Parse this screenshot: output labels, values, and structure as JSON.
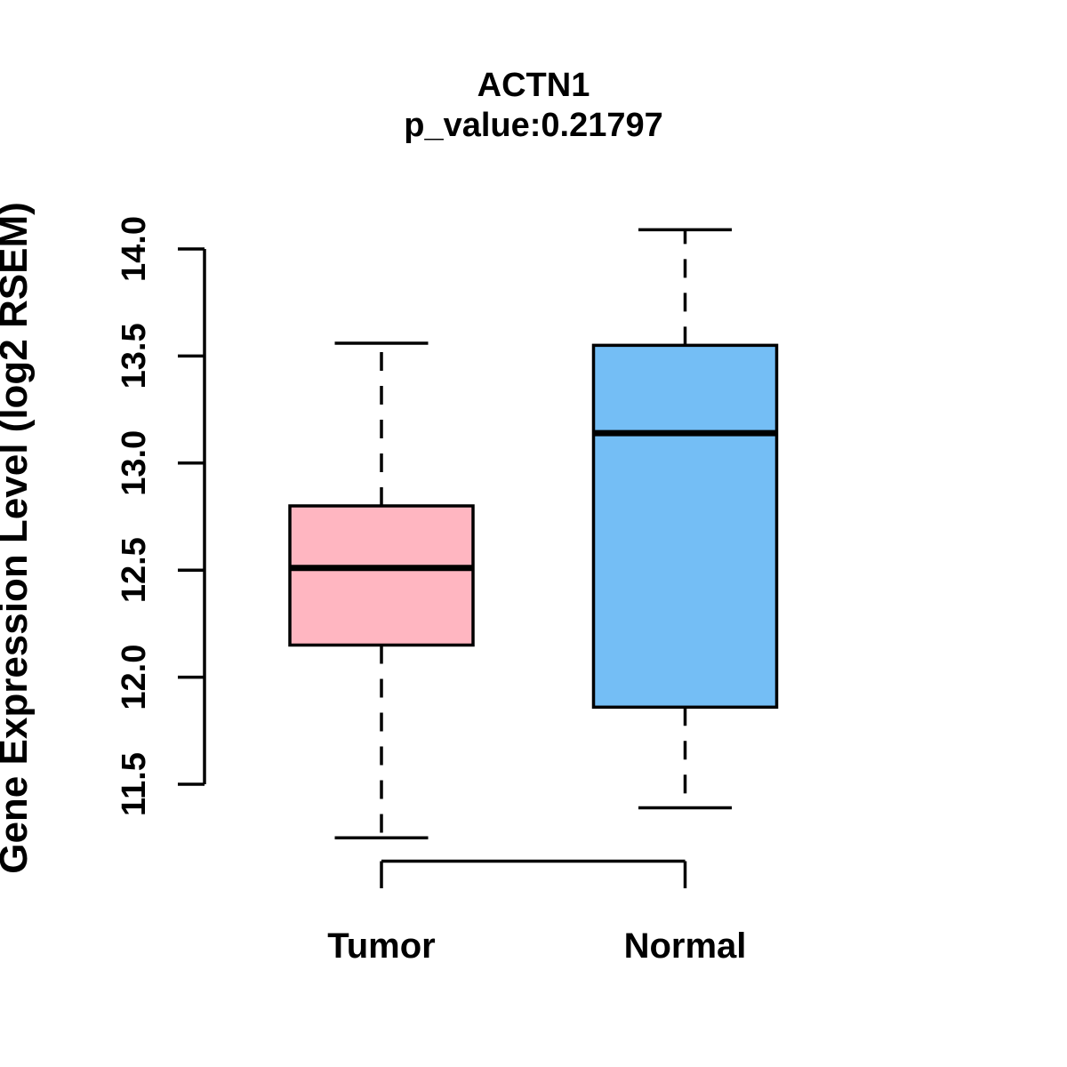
{
  "page": {
    "background": "#FFFFFF"
  },
  "chart_data": {
    "type": "boxplot",
    "title": "ACTN1",
    "subtitle": "p_value:0.21797",
    "ylabel": "Gene Expression Level (log2 RSEM)",
    "xlabel": "",
    "yticks": [
      "11.5",
      "12.0",
      "12.5",
      "13.0",
      "13.5",
      "14.0"
    ],
    "ytick_values": [
      11.5,
      12.0,
      12.5,
      13.0,
      13.5,
      14.0
    ],
    "ylim": [
      11.25,
      14.09
    ],
    "grid": "off",
    "legend": "none",
    "axis_color": "#000000",
    "whisker_style": "dashed",
    "groups": [
      {
        "label": "Tumor",
        "fill": "#FFB6C1",
        "border": "#000000",
        "whisker_low": 11.25,
        "q1": 12.15,
        "median": 12.51,
        "q3": 12.8,
        "whisker_high": 13.56
      },
      {
        "label": "Normal",
        "fill": "#74BEF5",
        "border": "#000000",
        "whisker_low": 11.39,
        "q1": 11.86,
        "median": 13.14,
        "q3": 13.55,
        "whisker_high": 14.09
      }
    ]
  }
}
